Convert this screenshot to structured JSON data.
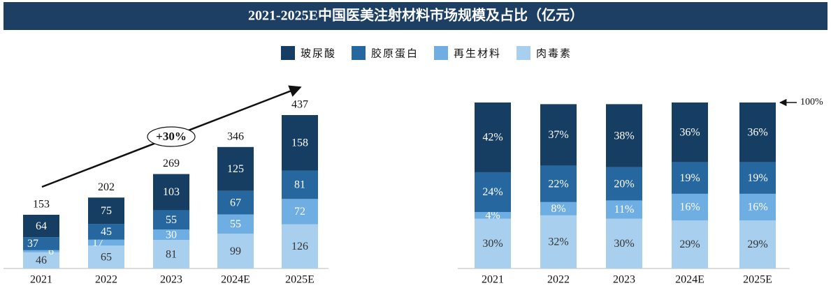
{
  "title": "2021-2025E中国医美注射材料市场规模及占比（亿元）",
  "chart_data": [
    {
      "type": "stacked-bar",
      "categories": [
        "2021",
        "2022",
        "2023",
        "2024E",
        "2025E"
      ],
      "series": [
        {
          "name": "肉毒素",
          "color": "#a9cfee",
          "values": [
            46,
            65,
            81,
            99,
            126
          ]
        },
        {
          "name": "再生材料",
          "color": "#6eaee2",
          "values": [
            6,
            17,
            30,
            55,
            72
          ]
        },
        {
          "name": "胶原蛋白",
          "color": "#27679f",
          "values": [
            37,
            45,
            55,
            67,
            81
          ]
        },
        {
          "name": "玻尿酸",
          "color": "#163e63",
          "values": [
            64,
            75,
            103,
            125,
            158
          ]
        }
      ],
      "totals": [
        153,
        202,
        269,
        346,
        437
      ],
      "annotations": [
        {
          "text": "+30%"
        }
      ]
    },
    {
      "type": "stacked-bar",
      "categories": [
        "2021",
        "2022",
        "2023",
        "2024E",
        "2025E"
      ],
      "series": [
        {
          "name": "肉毒素",
          "color": "#a9cfee",
          "values": [
            30,
            32,
            30,
            29,
            29
          ],
          "value_labels": [
            "30%",
            "32%",
            "30%",
            "29%",
            "29%"
          ]
        },
        {
          "name": "再生材料",
          "color": "#6eaee2",
          "values": [
            4,
            8,
            11,
            16,
            16
          ],
          "value_labels": [
            "4%",
            "8%",
            "11%",
            "16%",
            "16%"
          ]
        },
        {
          "name": "胶原蛋白",
          "color": "#27679f",
          "values": [
            24,
            22,
            20,
            19,
            19
          ],
          "value_labels": [
            "24%",
            "22%",
            "20%",
            "19%",
            "19%"
          ]
        },
        {
          "name": "玻尿酸",
          "color": "#163e63",
          "values": [
            42,
            37,
            38,
            36,
            36
          ],
          "value_labels": [
            "42%",
            "37%",
            "38%",
            "36%",
            "36%"
          ]
        }
      ],
      "annotations": [
        {
          "value": 100,
          "label": "100%"
        }
      ]
    }
  ]
}
